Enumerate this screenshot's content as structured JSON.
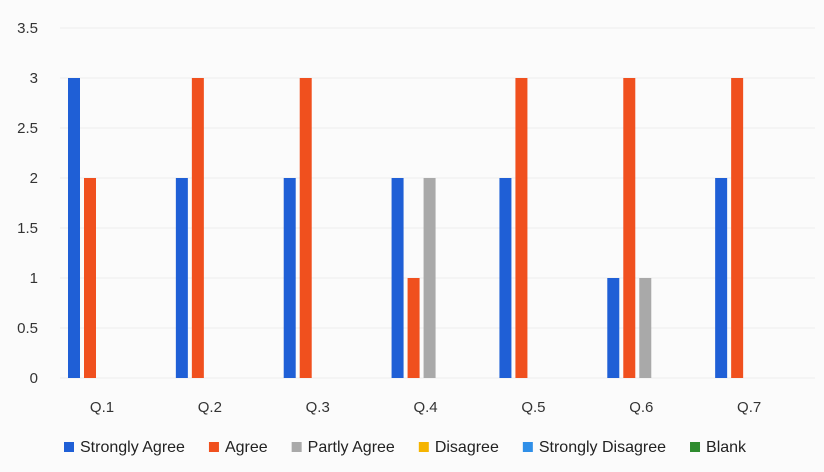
{
  "chart_data": {
    "type": "bar",
    "title": "",
    "xlabel": "",
    "ylabel": "",
    "ylim": [
      0,
      3.5
    ],
    "yticks": [
      "0",
      "0.5",
      "1",
      "1.5",
      "2",
      "2.5",
      "3",
      "3.5"
    ],
    "grid": true,
    "legend_position": "bottom",
    "categories": [
      "Q.1",
      "Q.2",
      "Q.3",
      "Q.4",
      "Q.5",
      "Q.6",
      "Q.7"
    ],
    "series": [
      {
        "name": "Strongly Agree",
        "color": "#1f5fd6",
        "values": [
          3,
          2,
          2,
          2,
          2,
          1,
          2
        ]
      },
      {
        "name": "Agree",
        "color": "#f0501e",
        "values": [
          2,
          3,
          3,
          1,
          3,
          3,
          3
        ]
      },
      {
        "name": "Partly Agree",
        "color": "#a9a9a9",
        "values": [
          0,
          0,
          0,
          2,
          0,
          1,
          0
        ]
      },
      {
        "name": "Disagree",
        "color": "#f5b400",
        "values": [
          0,
          0,
          0,
          0,
          0,
          0,
          0
        ]
      },
      {
        "name": "Strongly Disagree",
        "color": "#2f8fe8",
        "values": [
          0,
          0,
          0,
          0,
          0,
          0,
          0
        ]
      },
      {
        "name": "Blank",
        "color": "#2e8b2e",
        "values": [
          0,
          0,
          0,
          0,
          0,
          0,
          0
        ]
      }
    ]
  }
}
